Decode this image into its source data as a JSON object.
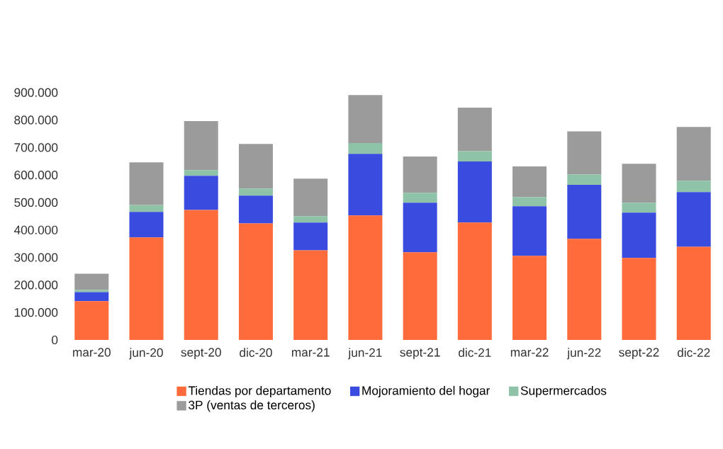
{
  "chart_data": {
    "type": "bar",
    "stacked": true,
    "legend": "bottom",
    "categories": [
      "mar-20",
      "jun-20",
      "sept-20",
      "dic-20",
      "mar-21",
      "jun-21",
      "sept-21",
      "dic-21",
      "mar-22",
      "jun-22",
      "sept-22",
      "dic-22"
    ],
    "ylim": [
      0,
      900000
    ],
    "yticks": [
      {
        "value": 0,
        "label": "0"
      },
      {
        "value": 100000,
        "label": "100.000"
      },
      {
        "value": 200000,
        "label": "200.000"
      },
      {
        "value": 300000,
        "label": "300.000"
      },
      {
        "value": 400000,
        "label": "400.000"
      },
      {
        "value": 500000,
        "label": "500.000"
      },
      {
        "value": 600000,
        "label": "600.000"
      },
      {
        "value": 700000,
        "label": "700.000"
      },
      {
        "value": 800000,
        "label": "800.000"
      },
      {
        "value": 900000,
        "label": "900.000"
      }
    ],
    "series": [
      {
        "name": "Tiendas por departamento",
        "color": "#ff6b3b",
        "values": [
          141000,
          373000,
          473000,
          424000,
          326000,
          453000,
          319000,
          427000,
          306000,
          368000,
          298000,
          339000
        ]
      },
      {
        "name": "Mojoramiento del hogar",
        "color": "#3a4be0",
        "values": [
          33000,
          93000,
          124000,
          101000,
          101000,
          224000,
          180000,
          222000,
          180000,
          196000,
          165000,
          199000
        ]
      },
      {
        "name": "Supermercados",
        "color": "#8fc3a7",
        "values": [
          8000,
          25000,
          21000,
          26000,
          23000,
          39000,
          36000,
          38000,
          34000,
          38000,
          36000,
          41000
        ]
      },
      {
        "name": "3P (ventas de terceros)",
        "color": "#9b9b9b",
        "values": [
          59000,
          155000,
          178000,
          162000,
          137000,
          175000,
          132000,
          158000,
          111000,
          157000,
          142000,
          196000
        ]
      }
    ]
  }
}
